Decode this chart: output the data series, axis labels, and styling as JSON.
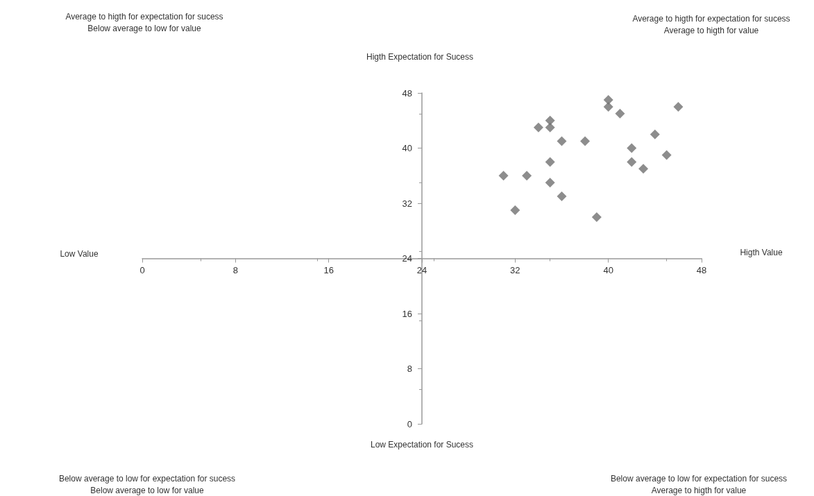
{
  "chart_data": {
    "type": "scatter",
    "color": "#707070",
    "marker": "diamond",
    "grid": false,
    "x": [
      31,
      32,
      33,
      34,
      35,
      35,
      35,
      35,
      36,
      36,
      38,
      39,
      40,
      40,
      41,
      42,
      42,
      43,
      44,
      45,
      46
    ],
    "values": [
      36,
      31,
      36,
      43,
      44,
      43,
      38,
      35,
      41,
      33,
      41,
      30,
      47,
      46,
      45,
      40,
      38,
      37,
      42,
      39,
      46
    ],
    "xlim": [
      0,
      48
    ],
    "xticks": [
      0,
      8,
      16,
      24,
      32,
      40,
      48
    ],
    "ylim": [
      0,
      48
    ],
    "yticks": [
      0,
      8,
      16,
      24,
      32,
      40,
      48
    ],
    "annotations": [
      "Average to higth for expectation for sucess\nBelow average to low for value",
      "Average to higth for expectation for sucess\nAverage to higth for value",
      "Below average to low for expectation for sucess\nBelow average to low for value",
      "Below average to low for expectation for sucess\nAverage to higth for value",
      "Higth Expectation for Sucess",
      "Low Expectation for Sucess",
      "Low Value",
      "Higth Value"
    ]
  }
}
